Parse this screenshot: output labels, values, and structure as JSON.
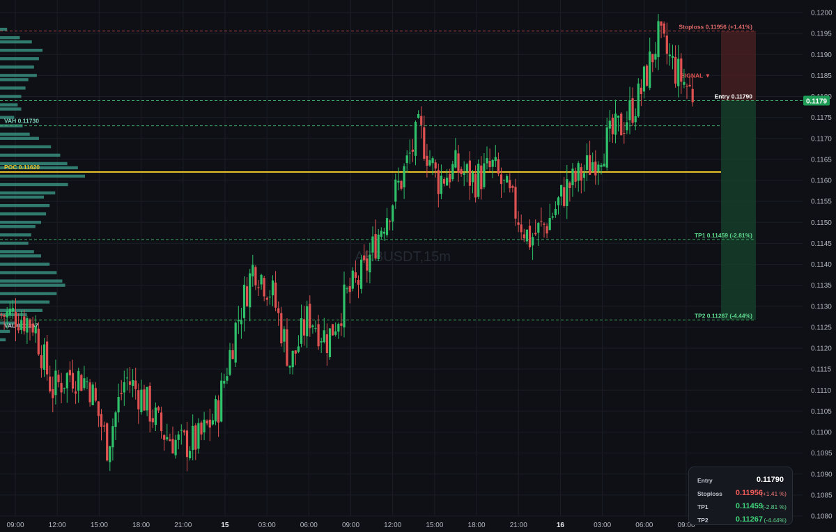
{
  "watermark": "ARBUSDT,15m",
  "colors": {
    "background": "#0e1015",
    "up": "#2fc26b",
    "down": "#e05252",
    "poc": "#e8c22a",
    "profile": "#3d9e8c",
    "grid": "#1b1e26",
    "text": "#c8ccd4"
  },
  "chart_data": {
    "type": "candlestick",
    "title": "",
    "symbol": "ARBUSDT",
    "timeframe": "15m",
    "ylim": [
      0.108,
      0.1205
    ],
    "y_ticks": [
      0.108,
      0.1085,
      0.109,
      0.1095,
      0.11,
      0.1105,
      0.111,
      0.1115,
      0.112,
      0.1125,
      0.113,
      0.1135,
      0.114,
      0.1145,
      0.115,
      0.1155,
      0.116,
      0.1165,
      0.117,
      0.1175,
      0.118,
      0.1185,
      0.119,
      0.1195,
      0.12
    ],
    "x_ticks": [
      "09:00",
      "12:00",
      "15:00",
      "18:00",
      "21:00",
      "15",
      "03:00",
      "06:00",
      "09:00",
      "12:00",
      "15:00",
      "18:00",
      "21:00",
      "16",
      "03:00",
      "06:00",
      "09:00"
    ],
    "current_price_label": "0.1179",
    "price_path": [
      {
        "t": "09:00",
        "price": 0.1128
      },
      {
        "t": "10:30",
        "price": 0.1126
      },
      {
        "t": "11:15",
        "price": 0.111
      },
      {
        "t": "12:00",
        "price": 0.1114
      },
      {
        "t": "13:30",
        "price": 0.1112
      },
      {
        "t": "15:00",
        "price": 0.1097
      },
      {
        "t": "16:30",
        "price": 0.1113
      },
      {
        "t": "18:00",
        "price": 0.1108
      },
      {
        "t": "19:00",
        "price": 0.11
      },
      {
        "t": "21:00",
        "price": 0.1097
      },
      {
        "t": "23:00",
        "price": 0.1098
      },
      {
        "t": "01:00",
        "price": 0.1105
      },
      {
        "t": "03:00",
        "price": 0.1125
      },
      {
        "t": "05:00",
        "price": 0.114
      },
      {
        "t": "06:00",
        "price": 0.1133
      },
      {
        "t": "08:00",
        "price": 0.1116
      },
      {
        "t": "09:00",
        "price": 0.1128
      },
      {
        "t": "10:30",
        "price": 0.1122
      },
      {
        "t": "12:00",
        "price": 0.1132
      },
      {
        "t": "13:30",
        "price": 0.1138
      },
      {
        "t": "14:30",
        "price": 0.115
      },
      {
        "t": "15:00",
        "price": 0.116
      },
      {
        "t": "15:40",
        "price": 0.1172
      },
      {
        "t": "17:00",
        "price": 0.116
      },
      {
        "t": "18:30",
        "price": 0.1163
      },
      {
        "t": "20:00",
        "price": 0.116
      },
      {
        "t": "21:00",
        "price": 0.1163
      },
      {
        "t": "22:30",
        "price": 0.1155
      },
      {
        "t": "23:30",
        "price": 0.1146
      },
      {
        "t": "00:30",
        "price": 0.115
      },
      {
        "t": "02:00",
        "price": 0.1158
      },
      {
        "t": "03:00",
        "price": 0.1162
      },
      {
        "t": "04:30",
        "price": 0.1168
      },
      {
        "t": "05:30",
        "price": 0.1173
      },
      {
        "t": "06:30",
        "price": 0.118
      },
      {
        "t": "08:00",
        "price": 0.1194
      },
      {
        "t": "09:00",
        "price": 0.1186
      },
      {
        "t": "09:30",
        "price": 0.118
      }
    ],
    "levels": {
      "stoploss": {
        "label": "Stoploss 0.11956 (+1.41%)",
        "price": 0.11956
      },
      "entry": {
        "label": "Entry 0.11790",
        "price": 0.1179
      },
      "vah": {
        "label": "VAH 0.11730",
        "price": 0.1173
      },
      "poc": {
        "label": "POC 0.11620",
        "price": 0.1162
      },
      "tp1": {
        "label": "TP1 0.11459 (-2.81%)",
        "price": 0.11459
      },
      "tp2": {
        "label": "TP2 0.11267 (-4.44%)",
        "price": 0.11267
      },
      "val": {
        "label": "VAL 0.11267",
        "price": 0.11267
      }
    },
    "signal_label": "SIGNAL ▼",
    "volume_profile": [
      {
        "price": 0.1196,
        "volume": 10
      },
      {
        "price": 0.1194,
        "volume": 28
      },
      {
        "price": 0.1193,
        "volume": 45
      },
      {
        "price": 0.1191,
        "volume": 60
      },
      {
        "price": 0.1189,
        "volume": 55
      },
      {
        "price": 0.1187,
        "volume": 48
      },
      {
        "price": 0.1185,
        "volume": 52
      },
      {
        "price": 0.1184,
        "volume": 40
      },
      {
        "price": 0.1182,
        "volume": 36
      },
      {
        "price": 0.118,
        "volume": 30
      },
      {
        "price": 0.1178,
        "volume": 25
      },
      {
        "price": 0.1177,
        "volume": 30
      },
      {
        "price": 0.1175,
        "volume": 20
      },
      {
        "price": 0.1173,
        "volume": 32
      },
      {
        "price": 0.1171,
        "volume": 42
      },
      {
        "price": 0.117,
        "volume": 55
      },
      {
        "price": 0.1168,
        "volume": 72
      },
      {
        "price": 0.1166,
        "volume": 85
      },
      {
        "price": 0.1164,
        "volume": 95
      },
      {
        "price": 0.1163,
        "volume": 110
      },
      {
        "price": 0.1161,
        "volume": 120
      },
      {
        "price": 0.1159,
        "volume": 96
      },
      {
        "price": 0.1157,
        "volume": 78
      },
      {
        "price": 0.1156,
        "volume": 62
      },
      {
        "price": 0.1154,
        "volume": 70
      },
      {
        "price": 0.1152,
        "volume": 65
      },
      {
        "price": 0.115,
        "volume": 58
      },
      {
        "price": 0.1149,
        "volume": 50
      },
      {
        "price": 0.1147,
        "volume": 44
      },
      {
        "price": 0.1145,
        "volume": 40
      },
      {
        "price": 0.1143,
        "volume": 48
      },
      {
        "price": 0.1142,
        "volume": 58
      },
      {
        "price": 0.114,
        "volume": 70
      },
      {
        "price": 0.1138,
        "volume": 80
      },
      {
        "price": 0.1136,
        "volume": 88
      },
      {
        "price": 0.1135,
        "volume": 92
      },
      {
        "price": 0.1133,
        "volume": 80
      },
      {
        "price": 0.1131,
        "volume": 70
      },
      {
        "price": 0.1129,
        "volume": 60
      },
      {
        "price": 0.1128,
        "volume": 38
      },
      {
        "price": 0.1126,
        "volume": 22
      },
      {
        "price": 0.1124,
        "volume": 14
      },
      {
        "price": 0.1122,
        "volume": 8
      }
    ]
  },
  "info_panel": {
    "rows": [
      {
        "label": "Entry",
        "value": "0.11790",
        "pct": ""
      },
      {
        "label": "Stoploss",
        "value": "0.11956",
        "pct": "(+1.41 %)"
      },
      {
        "label": "TP1",
        "value": "0.11459",
        "pct": "(-2.81 %)"
      },
      {
        "label": "TP2",
        "value": "0.11267",
        "pct": "(-4.44%)"
      }
    ]
  }
}
